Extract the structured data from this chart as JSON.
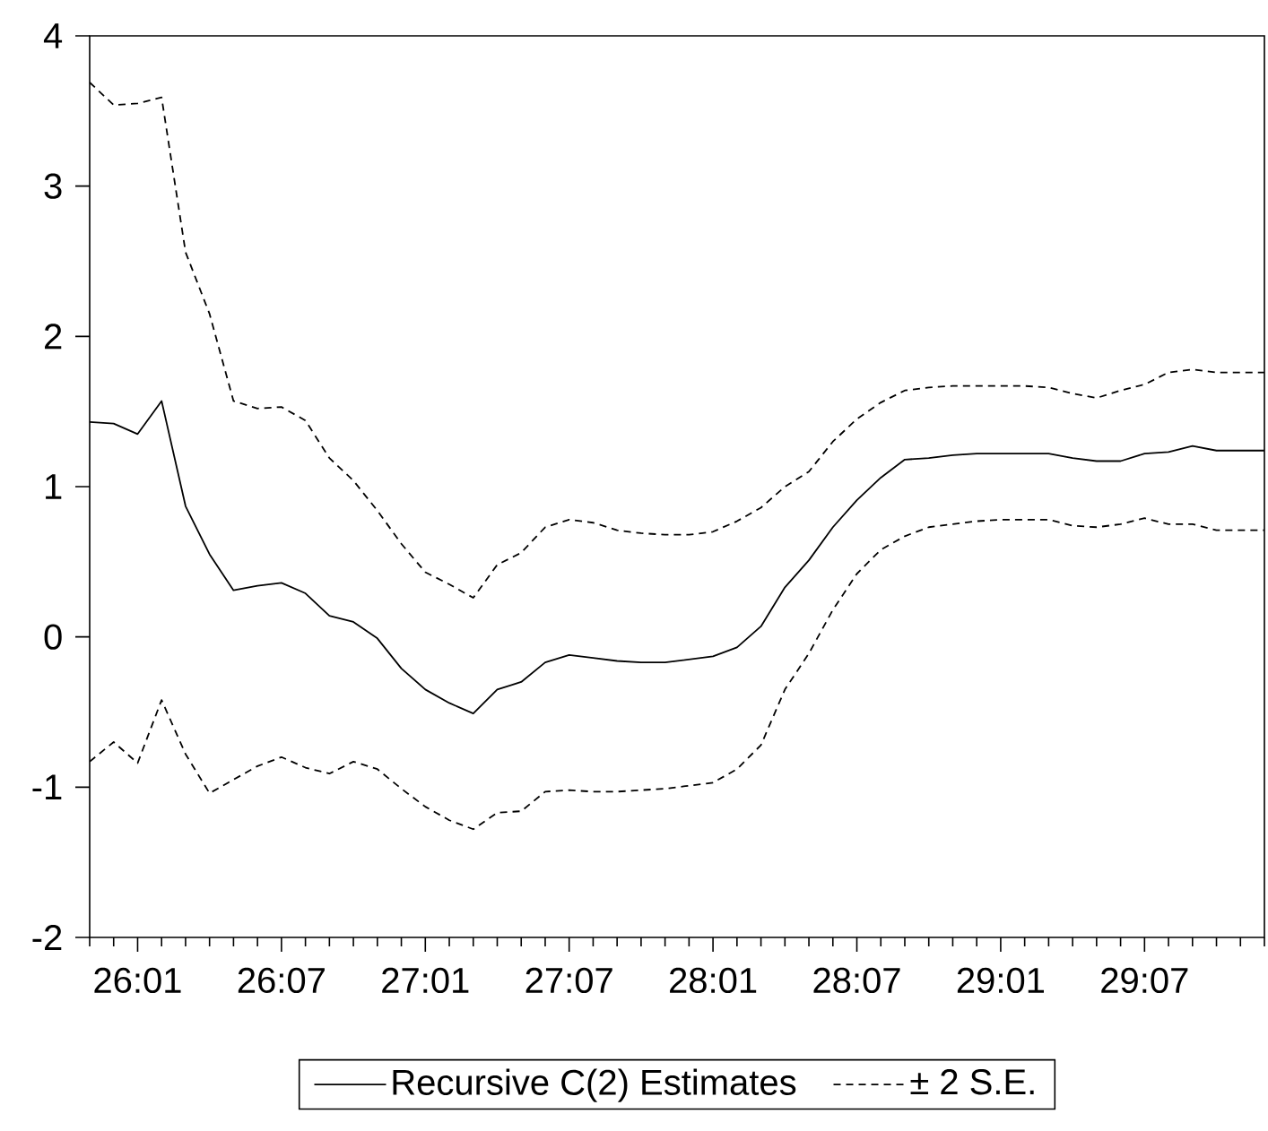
{
  "chart_data": {
    "type": "line",
    "categories": [
      null,
      null,
      "26:01",
      null,
      null,
      null,
      null,
      null,
      "26:07",
      null,
      null,
      null,
      null,
      null,
      "27:01",
      null,
      null,
      null,
      null,
      null,
      "27:07",
      null,
      null,
      null,
      null,
      null,
      "28:01",
      null,
      null,
      null,
      null,
      null,
      "28:07",
      null,
      null,
      null,
      null,
      null,
      "29:01",
      null,
      null,
      null,
      null,
      null,
      "29:07",
      null,
      null,
      null,
      null,
      null
    ],
    "series": [
      {
        "name": "Recursive C(2) Estimates",
        "color": "#000000",
        "line_style": "solid",
        "values": [
          1.43,
          1.42,
          1.35,
          1.57,
          0.87,
          0.55,
          0.31,
          0.34,
          0.36,
          0.29,
          0.14,
          0.1,
          -0.01,
          -0.21,
          -0.35,
          -0.44,
          -0.51,
          -0.35,
          -0.3,
          -0.17,
          -0.12,
          -0.14,
          -0.16,
          -0.17,
          -0.17,
          -0.15,
          -0.13,
          -0.07,
          0.07,
          0.33,
          0.51,
          0.73,
          0.91,
          1.06,
          1.18,
          1.19,
          1.21,
          1.22,
          1.22,
          1.22,
          1.22,
          1.19,
          1.17,
          1.17,
          1.22,
          1.23,
          1.27,
          1.24,
          1.24,
          1.24
        ]
      },
      {
        "name": "± 2 S.E.",
        "color": "#000000",
        "line_style": "dashed",
        "values": [
          3.69,
          3.54,
          3.55,
          3.59,
          2.56,
          2.15,
          1.57,
          1.52,
          1.53,
          1.44,
          1.19,
          1.04,
          0.84,
          0.62,
          0.43,
          0.35,
          0.26,
          0.48,
          0.56,
          0.73,
          0.78,
          0.76,
          0.71,
          0.69,
          0.68,
          0.68,
          0.7,
          0.77,
          0.86,
          1.0,
          1.1,
          1.3,
          1.45,
          1.56,
          1.64,
          1.66,
          1.67,
          1.67,
          1.67,
          1.67,
          1.66,
          1.62,
          1.59,
          1.64,
          1.68,
          1.76,
          1.78,
          1.76,
          1.76,
          1.76
        ]
      },
      {
        "color": "#000000",
        "line_style": "dashed",
        "values": [
          -0.83,
          -0.7,
          -0.84,
          -0.42,
          -0.78,
          -1.04,
          -0.95,
          -0.86,
          -0.8,
          -0.87,
          -0.91,
          -0.83,
          -0.88,
          -1.01,
          -1.13,
          -1.22,
          -1.28,
          -1.17,
          -1.16,
          -1.03,
          -1.02,
          -1.03,
          -1.03,
          -1.02,
          -1.01,
          -0.99,
          -0.97,
          -0.88,
          -0.72,
          -0.35,
          -0.11,
          0.18,
          0.42,
          0.58,
          0.67,
          0.73,
          0.75,
          0.77,
          0.78,
          0.78,
          0.78,
          0.74,
          0.73,
          0.75,
          0.79,
          0.75,
          0.75,
          0.71,
          0.71,
          0.71
        ]
      }
    ],
    "ylim": [
      -2,
      4
    ],
    "yticks": [
      -2,
      -1,
      0,
      1,
      2,
      3,
      4
    ],
    "grid": false,
    "legend": "bottom"
  }
}
